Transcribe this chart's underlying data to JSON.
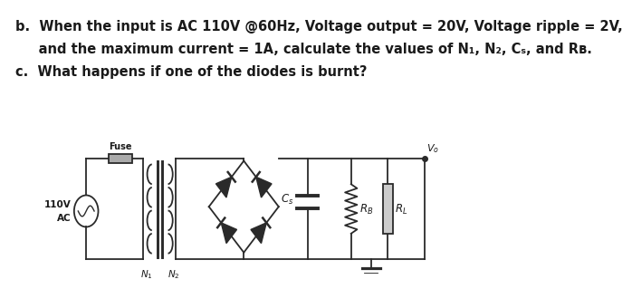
{
  "line1": "b.  When the input is AC 110V @60Hz, Voltage output = 20V, Voltage ripple = 2V,",
  "line2": "     and the maximum current = 1A, calculate the values of N₁, N₂, Cₛ, and Rʙ.",
  "line3": "c.  What happens if one of the diodes is burnt?",
  "bg_color": "#ffffff",
  "text_color": "#1a1a1a",
  "circuit_color": "#2a2a2a",
  "font_size": 10.5
}
